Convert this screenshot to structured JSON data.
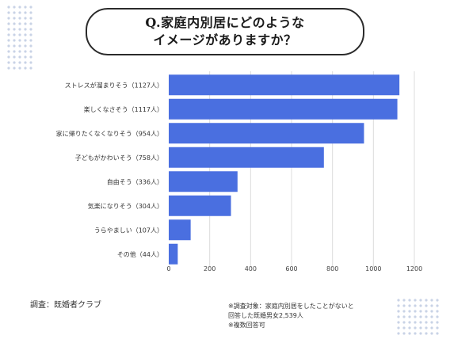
{
  "title": {
    "line1": "Q.家庭内別居にどのような",
    "line2": "イメージがありますか？"
  },
  "chart_data": {
    "type": "bar",
    "orientation": "horizontal",
    "categories": [
      "ストレスが溜まりそう（1127人）",
      "楽しくなさそう（1117人）",
      "家に帰りたくなくなりそう（954人）",
      "子どもがかわいそう（758人）",
      "自由そう（336人）",
      "気楽になりそう（304人）",
      "うらやましい（107人）",
      "その他（44人）"
    ],
    "values": [
      1127,
      1117,
      954,
      758,
      336,
      304,
      107,
      44
    ],
    "xlim": [
      0,
      1200
    ],
    "xticks": [
      0,
      200,
      400,
      600,
      800,
      1000,
      1200
    ],
    "grid": "vertical",
    "legend": "none",
    "bar_color": "#4a6fe0"
  },
  "footer": {
    "source": "調査：既婚者クラブ",
    "note1": "※調査対象：家庭内別居をしたことがないと",
    "note2": "回答した既婚男女2,539人",
    "note3": "※複数回答可"
  },
  "colors": {
    "dots": "#c9d3e6",
    "grid": "#dcdcdc"
  }
}
